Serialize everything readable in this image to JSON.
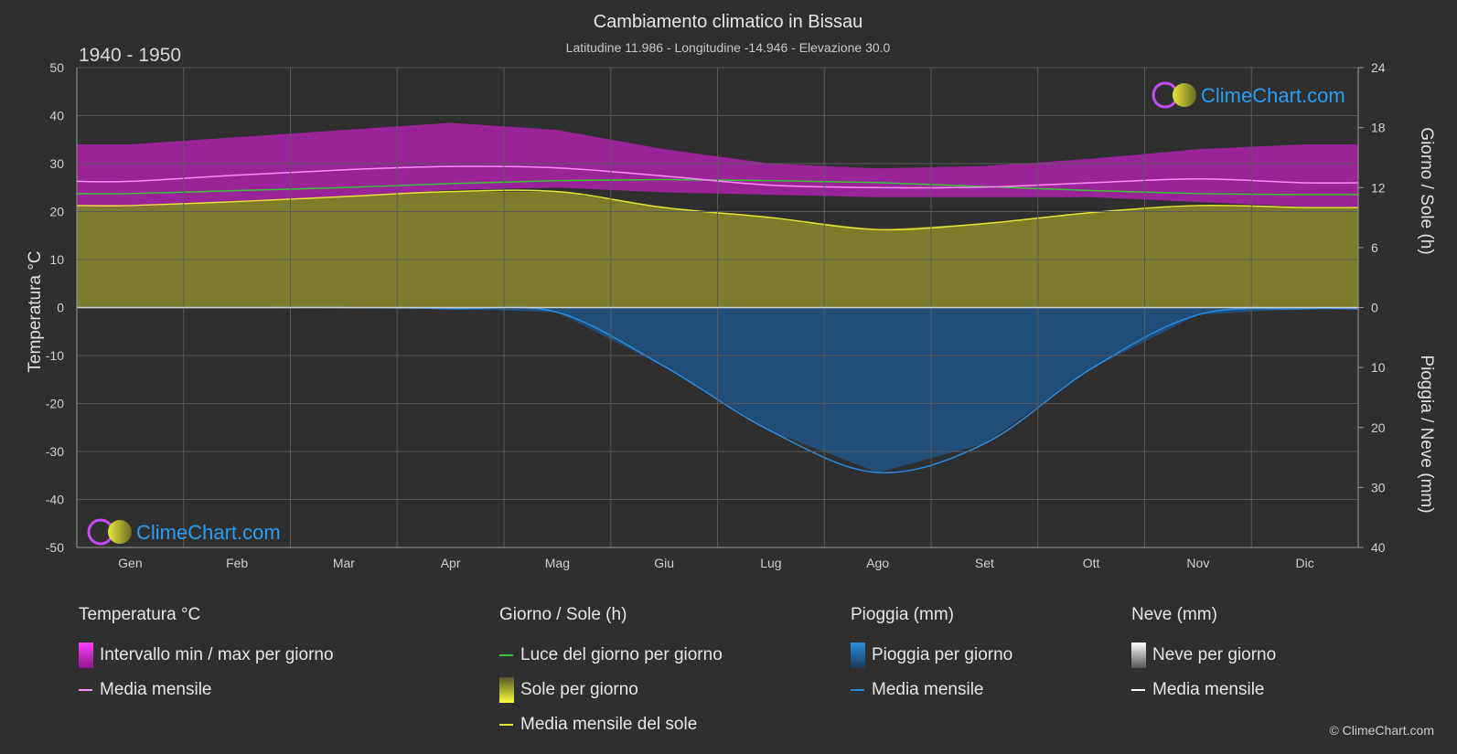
{
  "header": {
    "title": "Cambiamento climatico in Bissau",
    "subtitle": "Latitudine 11.986 - Longitudine -14.946 - Elevazione 30.0",
    "period": "1940 - 1950"
  },
  "logo_text": "ClimeChart.com",
  "copyright": "© ClimeChart.com",
  "colors": {
    "background": "#2f2f2f",
    "temp_range": "#c41ec4",
    "temp_mean": "#ff8cff",
    "daylight": "#32c832",
    "sun_fill": "#8c8c28",
    "sun_mean": "#e6e632",
    "rain_fill": "#1e64a0",
    "rain_mean": "#2a8ce0",
    "snow_mean": "#ffffff",
    "logo_blue": "#2a9df4"
  },
  "chart_data": {
    "type": "area",
    "months": [
      "Gen",
      "Feb",
      "Mar",
      "Apr",
      "Mag",
      "Giu",
      "Lug",
      "Ago",
      "Set",
      "Ott",
      "Nov",
      "Dic"
    ],
    "left_axis": {
      "label": "Temperatura °C",
      "range": [
        -50,
        50
      ],
      "ticks": [
        "50",
        "40",
        "30",
        "20",
        "10",
        "0",
        "-10",
        "-20",
        "-30",
        "-40",
        "-50"
      ]
    },
    "right_axis_top": {
      "label": "Giorno / Sole (h)",
      "range": [
        0,
        24
      ],
      "ticks": [
        "24",
        "18",
        "12",
        "6",
        "0"
      ]
    },
    "right_axis_bottom": {
      "label": "Pioggia / Neve (mm)",
      "range": [
        0,
        40
      ],
      "ticks": [
        "0",
        "10",
        "20",
        "30",
        "40"
      ]
    },
    "series": [
      {
        "name": "Intervallo min / max per giorno",
        "type": "range",
        "unit": "°C",
        "min": [
          21,
          22,
          23,
          24.5,
          25,
          24,
          23.5,
          23,
          23,
          23,
          22,
          21
        ],
        "max": [
          34,
          35.5,
          37,
          38.5,
          37,
          33,
          30,
          29,
          29.5,
          31,
          33,
          34
        ]
      },
      {
        "name": "Media mensile",
        "group": "temperature",
        "unit": "°C",
        "values": [
          26.3,
          27.6,
          28.7,
          29.4,
          29.1,
          27.4,
          25.5,
          25.0,
          25.1,
          26.0,
          26.8,
          26.0
        ]
      },
      {
        "name": "Luce del giorno per giorno",
        "unit": "h",
        "values": [
          11.4,
          11.7,
          12.0,
          12.4,
          12.7,
          12.8,
          12.7,
          12.5,
          12.1,
          11.7,
          11.4,
          11.3
        ]
      },
      {
        "name": "Sole per giorno",
        "type": "area",
        "unit": "h",
        "values": [
          10.2,
          10.6,
          11.1,
          11.6,
          11.6,
          10.0,
          9.0,
          7.8,
          8.4,
          9.5,
          10.2,
          10.0
        ]
      },
      {
        "name": "Media mensile del sole",
        "unit": "h",
        "values": [
          10.2,
          10.6,
          11.1,
          11.6,
          11.6,
          10.0,
          9.0,
          7.8,
          8.4,
          9.5,
          10.2,
          10.0
        ]
      },
      {
        "name": "Pioggia per giorno",
        "type": "area",
        "unit": "mm",
        "values": [
          0.0,
          0.0,
          0.0,
          0.2,
          0.8,
          9.8,
          20.6,
          27.5,
          22.7,
          10.2,
          1.2,
          0.2
        ]
      },
      {
        "name": "Media mensile",
        "group": "rain",
        "unit": "mm",
        "values": [
          0.0,
          0.0,
          0.0,
          0.2,
          0.8,
          9.8,
          20.6,
          27.5,
          22.7,
          10.2,
          1.2,
          0.2
        ]
      },
      {
        "name": "Neve per giorno",
        "unit": "mm",
        "values": [
          0,
          0,
          0,
          0,
          0,
          0,
          0,
          0,
          0,
          0,
          0,
          0
        ]
      },
      {
        "name": "Media mensile",
        "group": "snow",
        "unit": "mm",
        "values": [
          0,
          0,
          0,
          0,
          0,
          0,
          0,
          0,
          0,
          0,
          0,
          0
        ]
      }
    ],
    "grid": true
  },
  "legend": {
    "temperature": {
      "title": "Temperatura °C",
      "items": [
        "Intervallo min / max per giorno",
        "Media mensile"
      ]
    },
    "sun": {
      "title": "Giorno / Sole (h)",
      "items": [
        "Luce del giorno per giorno",
        "Sole per giorno",
        "Media mensile del sole"
      ]
    },
    "rain": {
      "title": "Pioggia (mm)",
      "items": [
        "Pioggia per giorno",
        "Media mensile"
      ]
    },
    "snow": {
      "title": "Neve (mm)",
      "items": [
        "Neve per giorno",
        "Media mensile"
      ]
    }
  }
}
